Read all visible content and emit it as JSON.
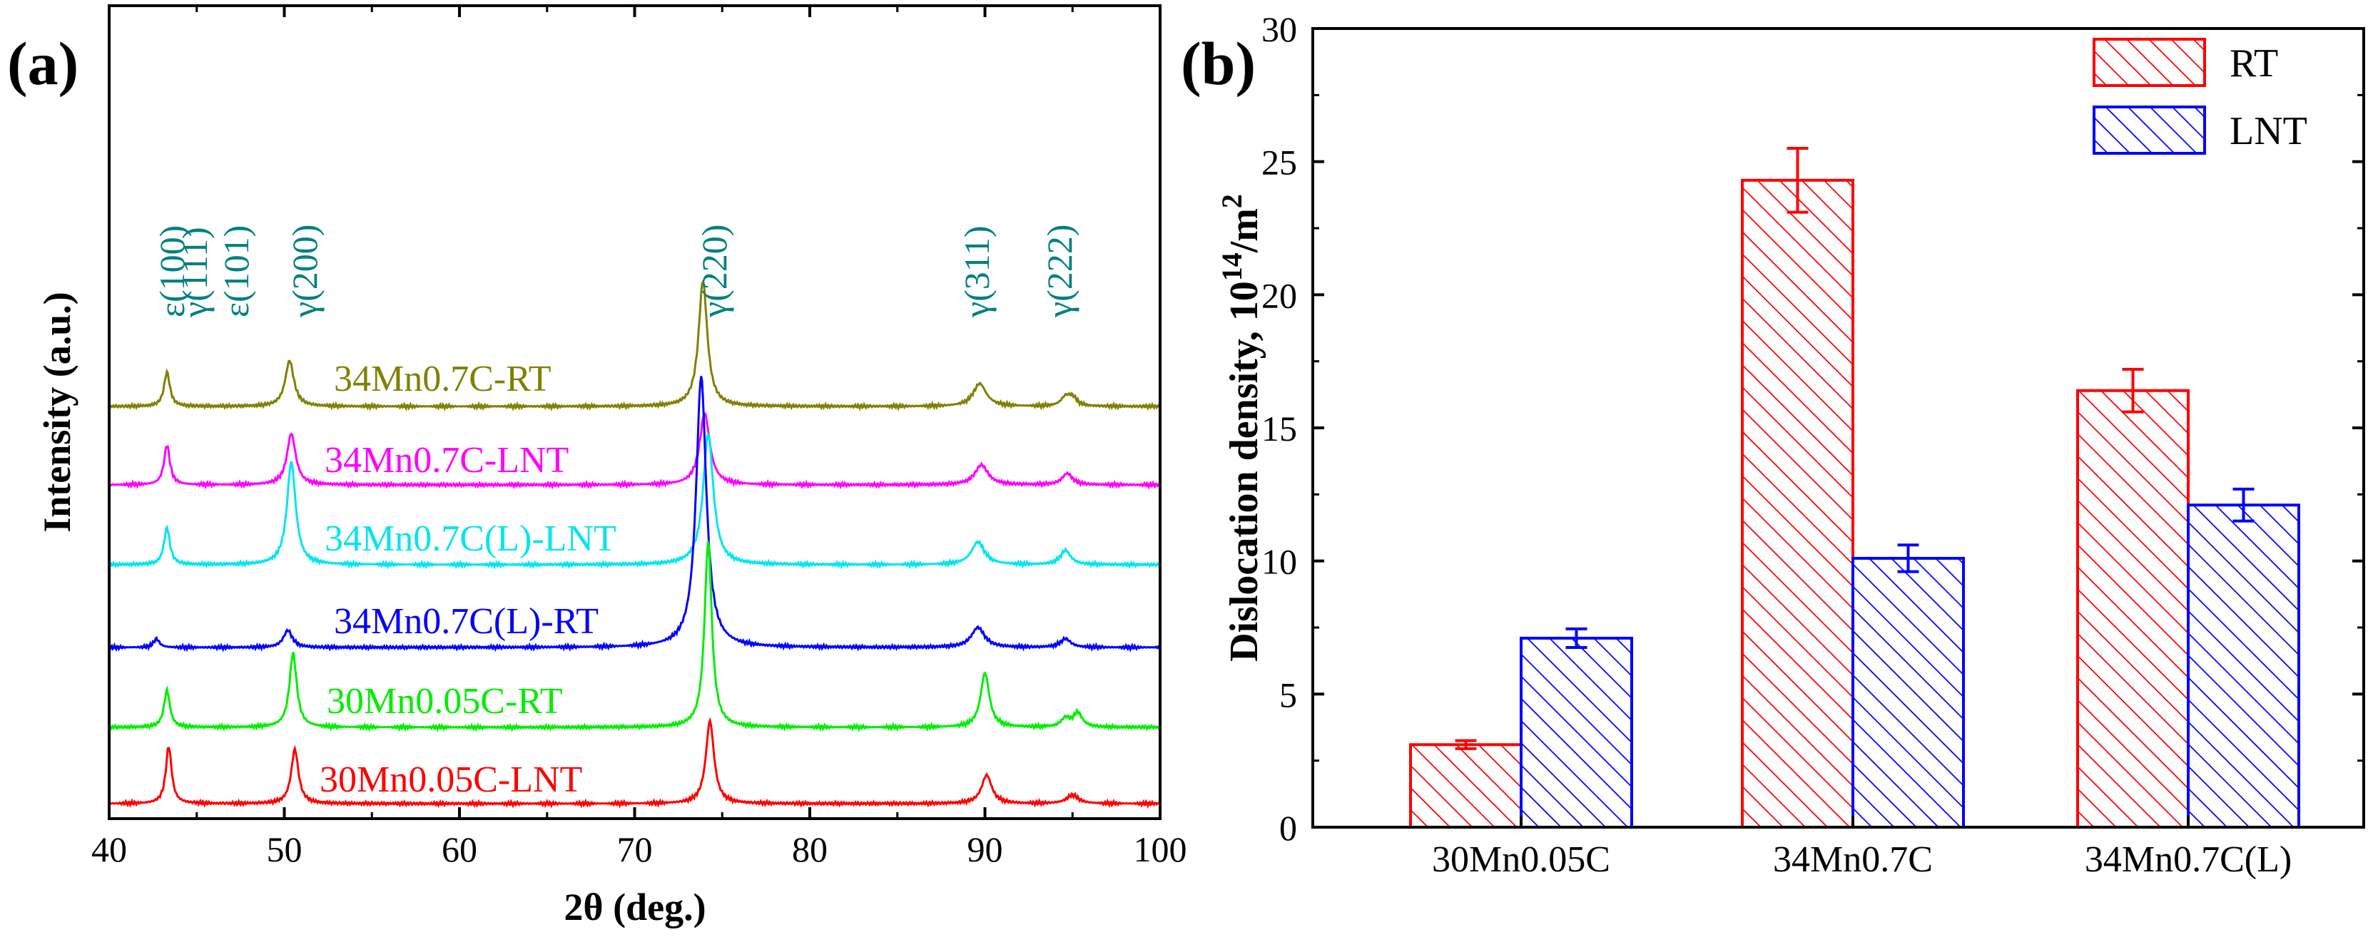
{
  "chart_data": [
    {
      "panel_label": "(a)",
      "type": "line",
      "xlabel": "2θ (deg.)",
      "ylabel": "Intensity (a.u.)",
      "xlim": [
        40,
        100
      ],
      "xticks": [
        "40",
        "50",
        "60",
        "70",
        "80",
        "90",
        "100"
      ],
      "peak_labels": [
        {
          "text": "ε(100)",
          "x": 43.2
        },
        {
          "text": "γ(111)",
          "x": 44.4
        },
        {
          "text": "ε(101)",
          "x": 47.0
        },
        {
          "text": "γ(200)",
          "x": 50.1
        },
        {
          "text": "γ(220)",
          "x": 73.8
        },
        {
          "text": "γ(311)",
          "x": 89.8
        },
        {
          "text": "γ(222)",
          "x": 95.0
        }
      ],
      "series": [
        {
          "name": "34Mn0.7C-RT",
          "color": "#808000",
          "offset": 5,
          "peaks": [
            [
              43.3,
              1.2,
              0.2
            ],
            [
              50.3,
              1.6,
              0.3
            ],
            [
              73.9,
              4.4,
              0.3
            ],
            [
              89.7,
              0.8,
              0.45
            ],
            [
              94.6,
              0.3,
              0.3
            ],
            [
              95.0,
              0.3,
              0.3
            ]
          ]
        },
        {
          "name": "34Mn0.7C-LNT",
          "color": "#ff00ff",
          "offset": 4,
          "peaks": [
            [
              43.3,
              1.4,
              0.2
            ],
            [
              50.4,
              1.8,
              0.3
            ],
            [
              74.0,
              2.5,
              0.35
            ],
            [
              89.8,
              0.7,
              0.45
            ],
            [
              94.7,
              0.4,
              0.35
            ]
          ]
        },
        {
          "name": "34Mn0.7C(L)-LNT",
          "color": "#00e5ee",
          "offset": 3,
          "peaks": [
            [
              43.3,
              1.3,
              0.2
            ],
            [
              50.4,
              3.6,
              0.3
            ],
            [
              74.2,
              4.6,
              0.35
            ],
            [
              89.6,
              0.8,
              0.45
            ],
            [
              94.6,
              0.5,
              0.35
            ]
          ]
        },
        {
          "name": "34Mn0.7C(L)-RT",
          "color": "#0000ff",
          "offset": 2,
          "peaks": [
            [
              42.7,
              0.3,
              0.2
            ],
            [
              50.2,
              0.6,
              0.3
            ],
            [
              73.8,
              9.5,
              0.35
            ],
            [
              89.6,
              0.7,
              0.45
            ],
            [
              94.6,
              0.3,
              0.35
            ]
          ]
        },
        {
          "name": "30Mn0.05C-RT",
          "color": "#00ee00",
          "offset": 1,
          "peaks": [
            [
              43.3,
              1.3,
              0.2
            ],
            [
              50.5,
              2.6,
              0.25
            ],
            [
              74.2,
              6.5,
              0.25
            ],
            [
              90.0,
              1.9,
              0.3
            ],
            [
              94.6,
              0.3,
              0.3
            ],
            [
              95.3,
              0.5,
              0.3
            ]
          ]
        },
        {
          "name": "30Mn0.05C-LNT",
          "color": "#ff0000",
          "offset": 0,
          "peaks": [
            [
              43.4,
              2.0,
              0.2
            ],
            [
              50.6,
              1.9,
              0.25
            ],
            [
              74.3,
              2.9,
              0.28
            ],
            [
              90.1,
              1.0,
              0.35
            ],
            [
              95.0,
              0.3,
              0.4
            ]
          ]
        }
      ]
    },
    {
      "panel_label": "(b)",
      "type": "bar",
      "ylabel_prefix": "Dislocation density, 10",
      "ylabel_sup": "14",
      "ylabel_suffix": "/m",
      "ylabel_sup2": "2",
      "ylim": [
        0,
        30
      ],
      "yticks": [
        "0",
        "5",
        "10",
        "15",
        "20",
        "25",
        "30"
      ],
      "categories": [
        "30Mn0.05C",
        "34Mn0.7C",
        "34Mn0.7C(L)"
      ],
      "legend_position": "top-right",
      "series": [
        {
          "name": "RT",
          "color": "#ff0000",
          "values": [
            3.1,
            24.3,
            16.4
          ],
          "errors": [
            0.15,
            1.2,
            0.8
          ]
        },
        {
          "name": "LNT",
          "color": "#0000ff",
          "values": [
            7.1,
            10.1,
            12.1
          ],
          "errors": [
            0.35,
            0.5,
            0.6
          ]
        }
      ]
    }
  ]
}
